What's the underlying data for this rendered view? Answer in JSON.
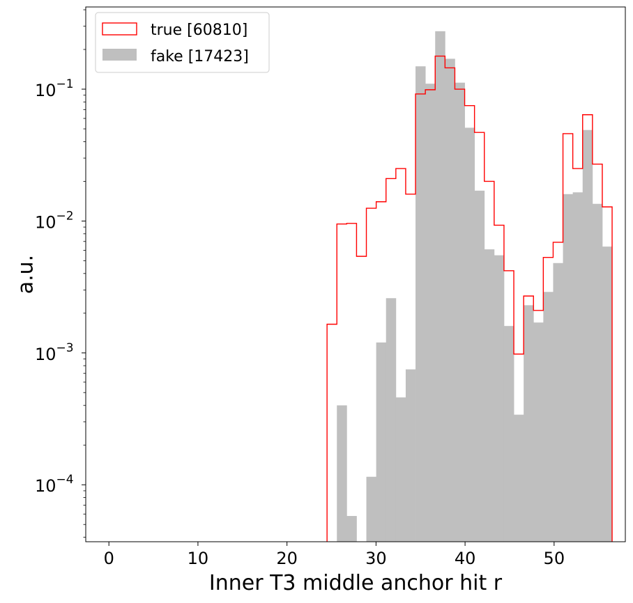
{
  "chart_data": {
    "type": "histogram",
    "xlabel": "Inner T3 middle anchor hit r",
    "ylabel": "a.u.",
    "xlim": [
      -2.6,
      58.0
    ],
    "ylim": [
      3.7e-05,
      0.42
    ],
    "yscale": "log",
    "x_ticks": [
      0,
      10,
      20,
      30,
      40,
      50
    ],
    "y_ticks": [
      {
        "value": 0.1,
        "mantissa": "10",
        "exponent": "−1"
      },
      {
        "value": 0.01,
        "mantissa": "10",
        "exponent": "−2"
      },
      {
        "value": 0.001,
        "mantissa": "10",
        "exponent": "−3"
      },
      {
        "value": 0.0001,
        "mantissa": "10",
        "exponent": "−4"
      }
    ],
    "legend": {
      "placement": "top-left"
    },
    "bins": {
      "start": 24.5,
      "width": 1.104
    },
    "series": [
      {
        "name": "true [60810]",
        "style": "step",
        "color": "#ff0000",
        "values": [
          0.00165,
          0.0095,
          0.0096,
          0.0054,
          0.0125,
          0.014,
          0.021,
          0.025,
          0.016,
          0.092,
          0.099,
          0.178,
          0.145,
          0.1,
          0.075,
          0.047,
          0.02,
          0.0093,
          0.0042,
          0.00098,
          0.0027,
          0.0021,
          0.0053,
          0.0069,
          0.046,
          0.025,
          0.064,
          0.027,
          0.0128
        ]
      },
      {
        "name": "fake [17423]",
        "style": "filled",
        "color": "#bfbfbf",
        "values": [
          0.0,
          0.0004,
          5.8e-05,
          0.0,
          0.000115,
          0.0012,
          0.0026,
          0.00046,
          0.00075,
          0.149,
          0.11,
          0.275,
          0.17,
          0.112,
          0.051,
          0.017,
          0.0061,
          0.0055,
          0.0016,
          0.00034,
          0.0023,
          0.0017,
          0.0029,
          0.0048,
          0.016,
          0.0165,
          0.049,
          0.0135,
          0.0064
        ]
      }
    ]
  }
}
